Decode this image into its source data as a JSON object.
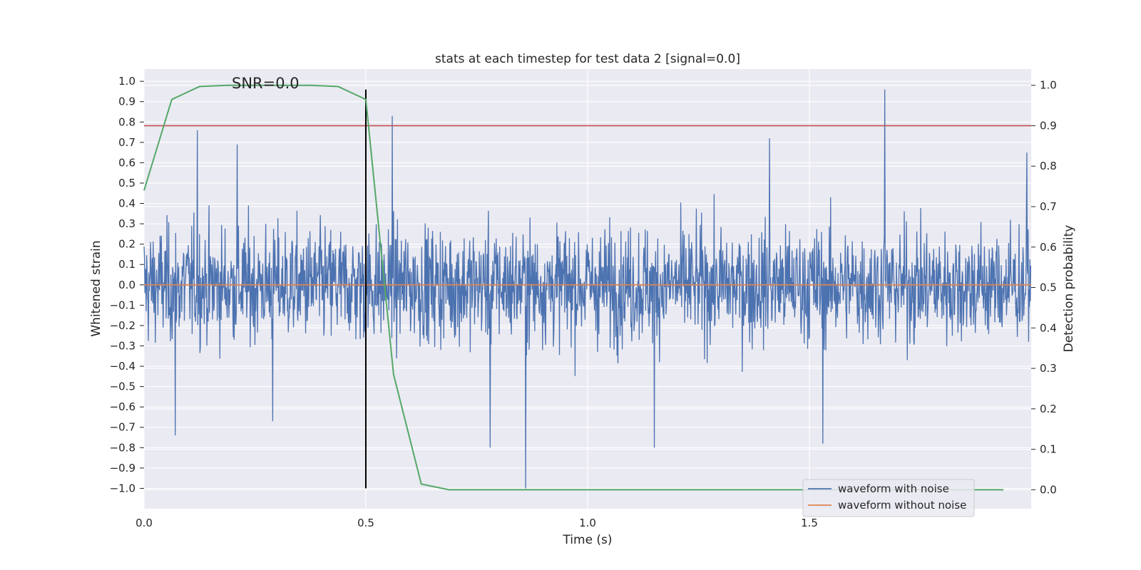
{
  "chart_data": {
    "type": "line",
    "title": "stats at each timestep for test data 2 [signal=0.0]",
    "xlabel": "Time (s)",
    "ylabel": "Whitened strain",
    "y2label": "Detection probability",
    "annotation": "SNR=0.0",
    "xlim": [
      0.0,
      2.0
    ],
    "ylim": [
      -1.1,
      1.06
    ],
    "y2lim": [
      -0.047,
      1.04
    ],
    "xticks": [
      "0.0",
      "0.5",
      "1.0",
      "1.5"
    ],
    "xtick_values": [
      0.0,
      0.5,
      1.0,
      1.5
    ],
    "yticks": [
      "−1.0",
      "−0.9",
      "−0.8",
      "−0.7",
      "−0.6",
      "−0.5",
      "−0.4",
      "−0.3",
      "−0.2",
      "−0.1",
      "0.0",
      "0.1",
      "0.2",
      "0.3",
      "0.4",
      "0.5",
      "0.6",
      "0.7",
      "0.8",
      "0.9",
      "1.0"
    ],
    "ytick_values": [
      -1.0,
      -0.9,
      -0.8,
      -0.7,
      -0.6,
      -0.5,
      -0.4,
      -0.3,
      -0.2,
      -0.1,
      0.0,
      0.1,
      0.2,
      0.3,
      0.4,
      0.5,
      0.6,
      0.7,
      0.8,
      0.9,
      1.0
    ],
    "y2ticks": [
      "0.0",
      "0.1",
      "0.2",
      "0.3",
      "0.4",
      "0.5",
      "0.6",
      "0.7",
      "0.8",
      "0.9",
      "1.0"
    ],
    "y2tick_values": [
      0.0,
      0.1,
      0.2,
      0.3,
      0.4,
      0.5,
      0.6,
      0.7,
      0.8,
      0.9,
      1.0
    ],
    "grid": true,
    "legend_position": "lower-right",
    "series": [
      {
        "name": "waveform with noise",
        "axis": "left",
        "color": "#4c72b0",
        "generated": true,
        "sample_count": 2048,
        "typical_amplitude": 0.2,
        "spikes": [
          {
            "x": 0.12,
            "y": 0.76
          },
          {
            "x": 0.21,
            "y": 0.69
          },
          {
            "x": 0.56,
            "y": 0.83
          },
          {
            "x": 0.86,
            "y": -1.0
          },
          {
            "x": 1.67,
            "y": 0.96
          },
          {
            "x": 0.07,
            "y": -0.74
          },
          {
            "x": 1.15,
            "y": -0.8
          },
          {
            "x": 1.53,
            "y": -0.78
          },
          {
            "x": 0.29,
            "y": -0.67
          },
          {
            "x": 0.78,
            "y": -0.8
          },
          {
            "x": 1.41,
            "y": 0.72
          },
          {
            "x": 1.99,
            "y": 0.65
          }
        ]
      },
      {
        "name": "waveform without noise",
        "axis": "left",
        "color": "#dd8452",
        "x": [
          0.0,
          2.0
        ],
        "y": [
          0.0,
          0.0
        ]
      },
      {
        "name": "",
        "axis": "right",
        "color": "#55a868",
        "x": [
          0.0,
          0.0625,
          0.125,
          0.1875,
          0.25,
          0.3125,
          0.375,
          0.4375,
          0.5,
          0.5625,
          0.625,
          0.6875,
          0.75,
          0.875,
          1.0,
          1.25,
          1.5,
          1.75,
          1.9375
        ],
        "y": [
          0.74,
          0.965,
          0.997,
          1.0,
          1.0,
          1.0,
          1.0,
          0.997,
          0.965,
          0.285,
          0.014,
          0.0,
          0.0,
          0.0,
          0.0,
          0.0,
          0.0,
          0.0,
          0.0
        ]
      }
    ],
    "reference_lines": [
      {
        "orientation": "horizontal",
        "axis": "right",
        "value": 0.9,
        "color": "#c44e52"
      },
      {
        "orientation": "vertical",
        "value": 0.5,
        "ymin": -1.0,
        "ymax": 0.96,
        "color": "#000000"
      }
    ]
  }
}
